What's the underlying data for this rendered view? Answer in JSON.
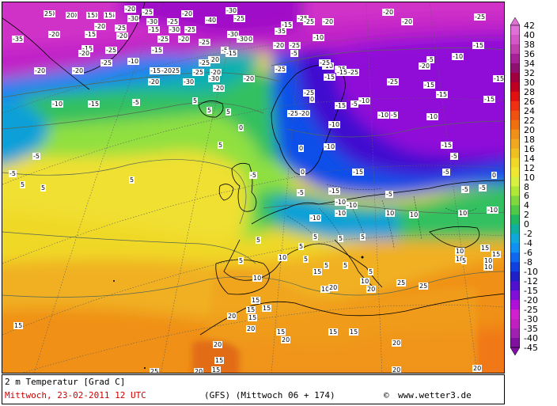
{
  "map": {
    "title": "2 m Temperatur [Grad C]",
    "date_line": "Mittwoch, 23-02-2011  12 UTC",
    "model_line": "(GFS)  (Mittwoch 06 + 174)",
    "copyright_symbol": "©",
    "source": "www.wetter3.de",
    "scale_ticks": [
      "42",
      "40",
      "38",
      "36",
      "34",
      "32",
      "30",
      "28",
      "26",
      "24",
      "22",
      "20",
      "18",
      "16",
      "14",
      "12",
      "10",
      "8",
      "6",
      "4",
      "2",
      "0",
      "-2",
      "-4",
      "-6",
      "-8",
      "-10",
      "-12",
      "-15",
      "-20",
      "-25",
      "-30",
      "-35",
      "-40",
      "-45"
    ],
    "scale_colors": [
      "#e070d8",
      "#d458c8",
      "#c040b0",
      "#a82098",
      "#901070",
      "#a00040",
      "#c00020",
      "#e01010",
      "#f03010",
      "#f05010",
      "#f07010",
      "#f09018",
      "#f0a820",
      "#f0c020",
      "#f0d828",
      "#f0e830",
      "#d8f040",
      "#b0e838",
      "#80d840",
      "#50c848",
      "#20b860",
      "#10b0a0",
      "#10a8d8",
      "#1090f0",
      "#1068f0",
      "#1040e0",
      "#2020c8",
      "#5010d0",
      "#8010d8",
      "#b010d8",
      "#d020d0",
      "#c020c0",
      "#a020b0",
      "#8010a0"
    ],
    "labels": [
      "-20",
      "-30",
      "-30",
      "-25",
      "-20",
      "-25",
      "-20",
      "-25",
      "-15",
      "-20",
      "-30",
      "-30",
      "-25",
      "-20",
      "-30",
      "-25",
      "-40",
      "-30",
      "-25",
      "-25",
      "-20",
      "-20",
      "-35",
      "-20",
      "-15",
      "-25",
      "-20",
      "-25",
      "-30",
      "-20",
      "-15",
      "-10",
      "-20",
      "-15",
      "-25",
      "-20",
      "-25",
      "-35",
      "-30",
      "-15",
      "-25",
      "-10",
      "-5",
      "-20",
      "-25",
      "-25",
      "-30",
      "-30",
      "-20",
      "-20",
      "-25",
      "-20",
      "-15",
      "-25",
      "-10",
      "-25",
      "-25",
      "-15",
      "-5",
      "-10",
      "-15",
      "-20",
      "-15",
      "-25",
      "-10",
      "-15",
      "-15",
      "-20",
      "-20",
      "-25",
      "-20",
      "-20",
      "-20",
      "-25",
      "-5",
      "-25",
      "-15",
      "-10",
      "-10",
      "-5",
      "-10",
      "-15",
      "-15",
      "-15",
      "-15",
      "-25",
      "-25",
      "-20",
      "-10",
      "-5",
      "0",
      "0",
      "-10",
      "-5",
      "-15",
      "-5",
      "-15",
      "-10",
      "-10",
      "-10",
      "0",
      "-5",
      "-10",
      "-15",
      "-5",
      "-5",
      "0",
      "-5",
      "-10",
      "-5",
      "-5",
      "5",
      "5",
      "0",
      "-5",
      "5",
      "5",
      "-5",
      "5",
      "5",
      "5",
      "5",
      "10",
      "10",
      "10",
      "5",
      "5",
      "5",
      "5",
      "5",
      "5",
      "10",
      "5",
      "5",
      "5",
      "10",
      "10",
      "10",
      "5",
      "10",
      "10",
      "15",
      "15",
      "15",
      "10",
      "10",
      "15",
      "15",
      "15",
      "15",
      "15",
      "20",
      "20",
      "20",
      "15",
      "15",
      "15",
      "20",
      "15",
      "15",
      "20",
      "25",
      "20",
      "20",
      "20",
      "20",
      "20",
      "25",
      "25",
      "25",
      "20",
      "15",
      "15"
    ]
  }
}
